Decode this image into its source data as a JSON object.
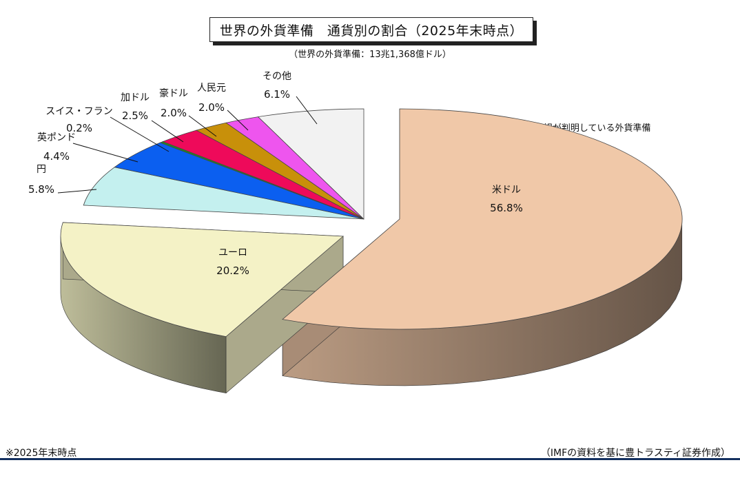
{
  "title": "世界の外貨準備　通貨別の割合（2025年末時点）",
  "subtitle": "（世界の外貨準備：13兆1,368億ドル）",
  "note": "※内訳が判明している外貨準備",
  "footer": {
    "left": "※2025年末時点",
    "right": "（IMFの資料を基に豊トラスティ証券作成）"
  },
  "chart_data": {
    "type": "pie",
    "three_d": true,
    "exploded": [
      "米ドル",
      "ユーロ"
    ],
    "slices": [
      {
        "label": "米ドル",
        "value": 56.8,
        "value_label": "56.8%",
        "color": "#f0c8a8"
      },
      {
        "label": "ユーロ",
        "value": 20.2,
        "value_label": "20.2%",
        "color": "#f4f2c6"
      },
      {
        "label": "円",
        "value": 5.8,
        "value_label": "5.8%",
        "color": "#c4f0ef"
      },
      {
        "label": "英ポンド",
        "value": 4.4,
        "value_label": "4.4%",
        "color": "#0b5ff0"
      },
      {
        "label": "スイス・フラン",
        "value": 0.2,
        "value_label": "0.2%",
        "color": "#1f8f1f"
      },
      {
        "label": "加ドル",
        "value": 2.5,
        "value_label": "2.5%",
        "color": "#ee0a5a"
      },
      {
        "label": "豪ドル",
        "value": 2.0,
        "value_label": "2.0%",
        "color": "#c8900a"
      },
      {
        "label": "人民元",
        "value": 2.0,
        "value_label": "2.0%",
        "color": "#ee55ee"
      },
      {
        "label": "その他",
        "value": 6.1,
        "value_label": "6.1%",
        "color": "#f2f2f2"
      }
    ]
  }
}
